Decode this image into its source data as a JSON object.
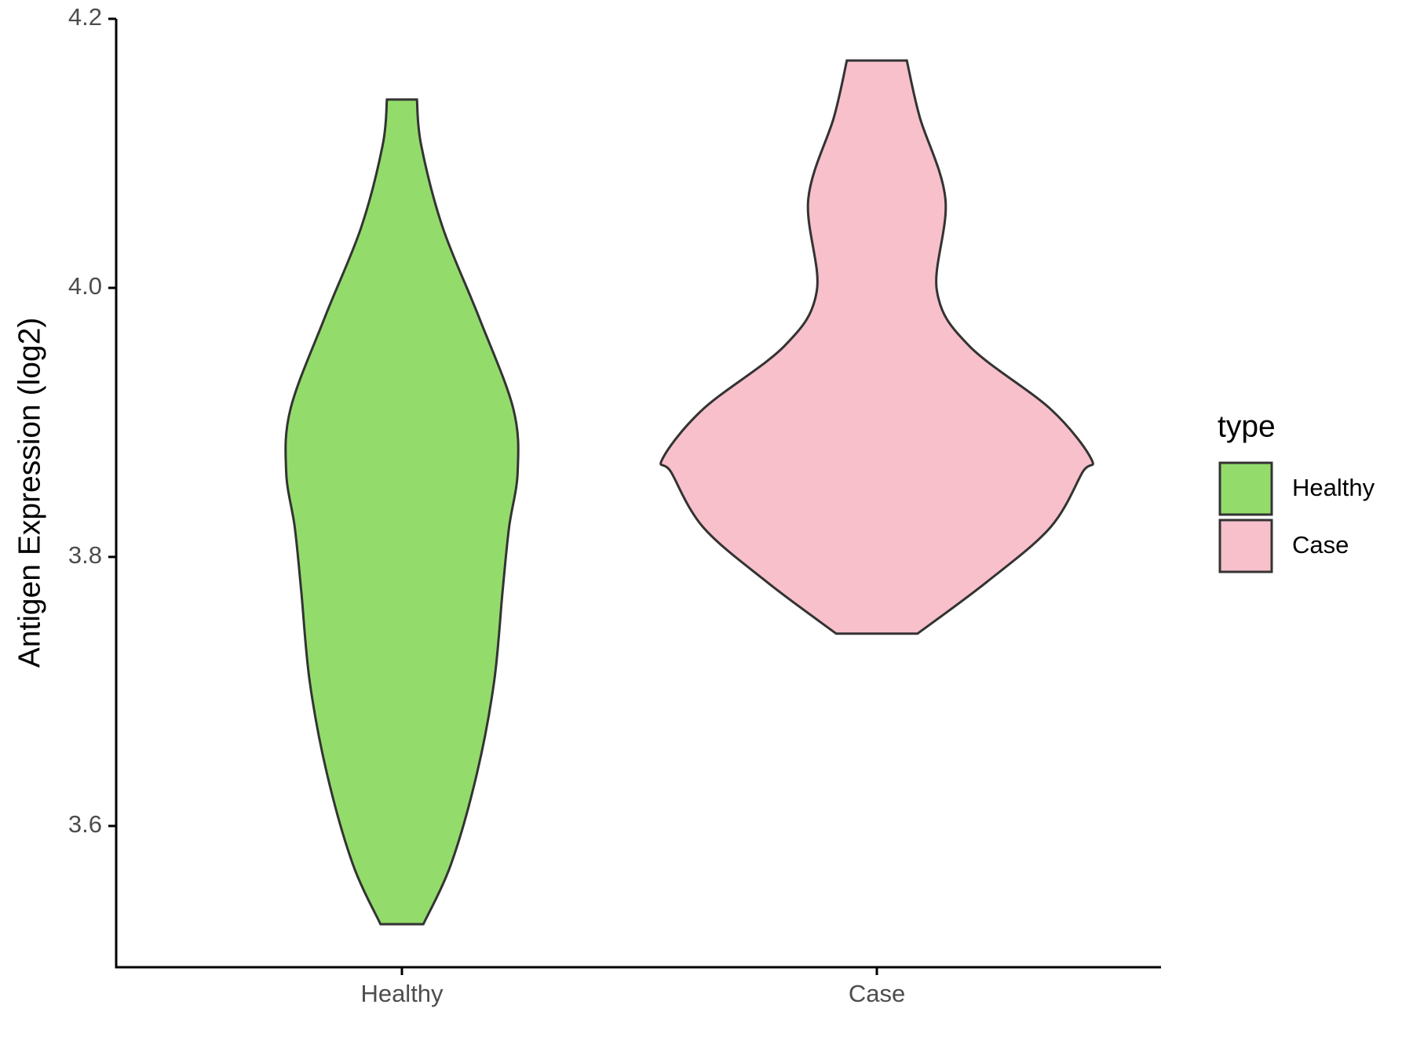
{
  "chart_data": {
    "type": "violin",
    "y_label": "Antigen Expression (log2)",
    "legend_title": "type",
    "categories": [
      "Healthy",
      "Case"
    ],
    "series": [
      {
        "name": "Healthy",
        "color": "#93dc6b",
        "y": [
          3.527,
          3.572,
          3.639,
          3.707,
          3.775,
          3.822,
          3.863,
          3.91,
          3.978,
          4.045,
          4.106,
          4.14
        ],
        "density": [
          0.1,
          0.23,
          0.35,
          0.43,
          0.47,
          0.5,
          0.54,
          0.52,
          0.36,
          0.19,
          0.09,
          0.07
        ]
      },
      {
        "name": "Case",
        "color": "#f7c0cb",
        "y": [
          3.743,
          3.781,
          3.822,
          3.863,
          3.873,
          3.91,
          3.957,
          3.998,
          4.066,
          4.127,
          4.169
        ],
        "density": [
          0.19,
          0.51,
          0.81,
          0.96,
          1.0,
          0.81,
          0.43,
          0.28,
          0.32,
          0.2,
          0.14
        ]
      }
    ],
    "ylim": [
      3.495,
      4.2
    ],
    "yticks": [
      3.6,
      3.8,
      {
        "value": 4,
        "label": "4.0"
      },
      4.2
    ],
    "grid": false,
    "legend": "right"
  }
}
